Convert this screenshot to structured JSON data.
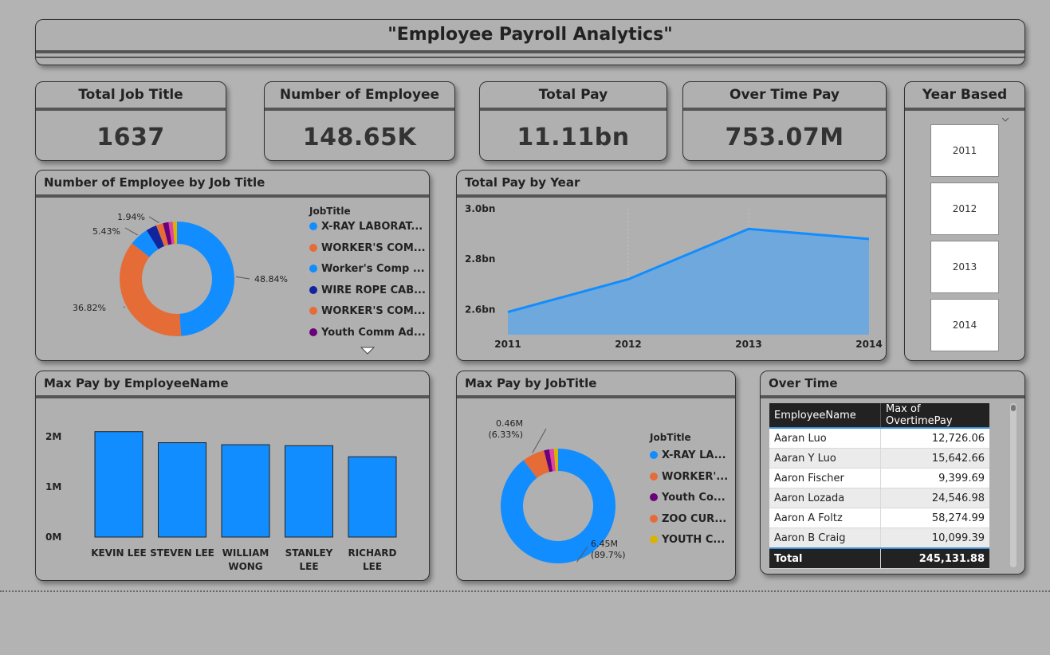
{
  "header": {
    "title": "\"Employee Payroll Analytics\""
  },
  "kpis": [
    {
      "label": "Total Job Title",
      "value": "1637"
    },
    {
      "label": "Number of Employee",
      "value": "148.65K"
    },
    {
      "label": "Total Pay",
      "value": "11.11bn"
    },
    {
      "label": "Over Time Pay",
      "value": "753.07M"
    }
  ],
  "year_slicer": {
    "title": "Year Based",
    "years": [
      "2011",
      "2012",
      "2013",
      "2014"
    ]
  },
  "overtime_table": {
    "title": "Over Time",
    "columns": [
      "EmployeeName",
      "Max of OvertimePay"
    ],
    "rows": [
      [
        "Aaran Luo",
        "12,726.06"
      ],
      [
        "Aaran Y Luo",
        "15,642.66"
      ],
      [
        "Aaron Fischer",
        "9,399.69"
      ],
      [
        "Aaron Lozada",
        "24,546.98"
      ],
      [
        "Aaron A Foltz",
        "58,274.99"
      ],
      [
        "Aaron B Craig",
        "10,099.39"
      ]
    ],
    "total_label": "Total",
    "total_value": "245,131.88"
  },
  "colors": {
    "blue": "#118dff",
    "orange": "#e66c37",
    "navy": "#12239e",
    "purple": "#6b007b",
    "red": "#e044a7",
    "yellow": "#d9b300",
    "area": "#6fa8dc"
  },
  "chart_data": [
    {
      "id": "emp_by_job",
      "type": "pie",
      "title": "Number of Employee by Job Title",
      "legend_title": "JobTitle",
      "legend": [
        "X-RAY LABORAT...",
        "WORKER'S COM...",
        "Worker's Comp ...",
        "WIRE ROPE CAB...",
        "WORKER'S COM...",
        "Youth Comm Ad..."
      ],
      "legend_colors": [
        "#118dff",
        "#e66c37",
        "#118dff",
        "#12239e",
        "#e66c37",
        "#6b007b"
      ],
      "slices": [
        {
          "value": 48.84,
          "color": "#118dff",
          "label": "48.84%"
        },
        {
          "value": 36.82,
          "color": "#e66c37",
          "label": "36.82%"
        },
        {
          "value": 5.43,
          "color": "#118dff",
          "label": "5.43%"
        },
        {
          "value": 3.0,
          "color": "#12239e",
          "label": ""
        },
        {
          "value": 1.94,
          "color": "#e66c37",
          "label": "1.94%"
        },
        {
          "value": 1.6,
          "color": "#6b007b",
          "label": ""
        },
        {
          "value": 1.2,
          "color": "#e044a7",
          "label": ""
        },
        {
          "value": 1.17,
          "color": "#d9b300",
          "label": ""
        }
      ]
    },
    {
      "id": "pay_by_year",
      "type": "area",
      "title": "Total Pay by Year",
      "x": [
        "2011",
        "2012",
        "2013",
        "2014"
      ],
      "values": [
        2.59,
        2.72,
        2.92,
        2.88
      ],
      "ylim": [
        2.5,
        3.0
      ],
      "yticks": [
        2.6,
        2.8,
        3.0
      ],
      "ytick_labels": [
        "2.6bn",
        "2.8bn",
        "3.0bn"
      ]
    },
    {
      "id": "max_pay_by_employee",
      "type": "bar",
      "title": "Max Pay by EmployeeName",
      "categories": [
        "KEVIN LEE",
        "STEVEN LEE",
        "WILLIAM WONG",
        "STANLEY LEE",
        "RICHARD LEE"
      ],
      "category_lines": [
        [
          "KEVIN LEE"
        ],
        [
          "STEVEN LEE"
        ],
        [
          "WILLIAM",
          "WONG"
        ],
        [
          "STANLEY",
          "LEE"
        ],
        [
          "RICHARD",
          "LEE"
        ]
      ],
      "values": [
        2.1,
        1.88,
        1.84,
        1.82,
        1.6
      ],
      "ylim": [
        0,
        2
      ],
      "yticks": [
        0,
        1,
        2
      ],
      "ytick_labels": [
        "0M",
        "1M",
        "2M"
      ]
    },
    {
      "id": "max_pay_by_job",
      "type": "pie",
      "title": "Max Pay by JobTitle",
      "legend_title": "JobTitle",
      "legend": [
        "X-RAY LA...",
        "WORKER'...",
        "Youth Co...",
        "ZOO CUR...",
        "YOUTH C..."
      ],
      "legend_colors": [
        "#118dff",
        "#e66c37",
        "#6b007b",
        "#e66c37",
        "#d9b300"
      ],
      "slices": [
        {
          "value": 89.7,
          "color": "#118dff",
          "label": "6.45M",
          "label2": "(89.7%)"
        },
        {
          "value": 6.33,
          "color": "#e66c37",
          "label": "0.46M",
          "label2": "(6.33%)"
        },
        {
          "value": 1.5,
          "color": "#6b007b",
          "label": ""
        },
        {
          "value": 1.3,
          "color": "#e044a7",
          "label": ""
        },
        {
          "value": 1.17,
          "color": "#d9b300",
          "label": ""
        }
      ]
    }
  ]
}
